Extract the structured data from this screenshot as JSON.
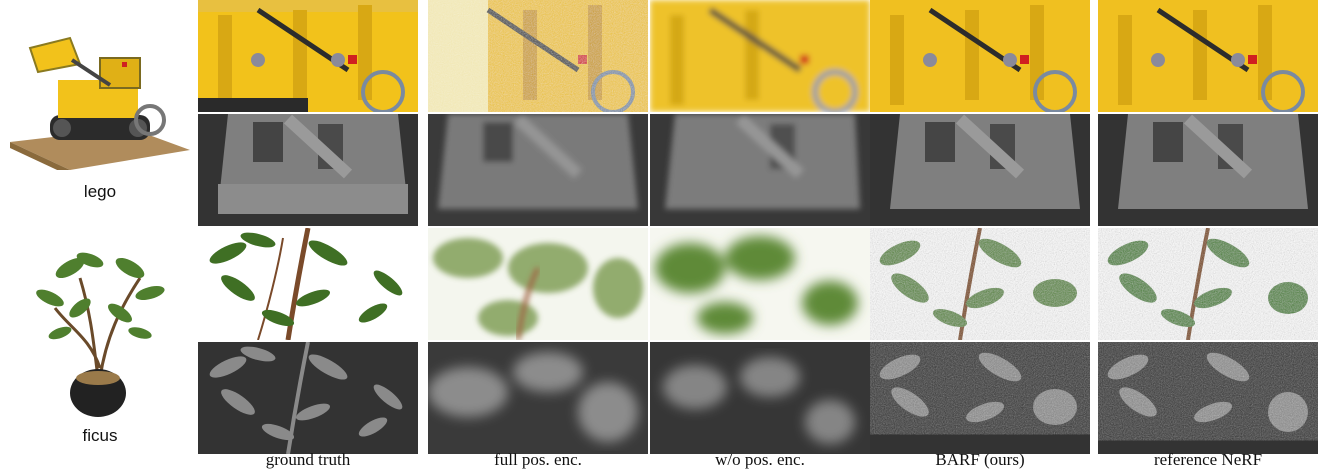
{
  "figure": {
    "scenes": [
      {
        "id": "lego",
        "label": "lego"
      },
      {
        "id": "ficus",
        "label": "ficus"
      }
    ],
    "methods": [
      {
        "id": "ground-truth",
        "caption": "ground truth",
        "quality": "sharp"
      },
      {
        "id": "full-pos-enc",
        "caption": "full pos. enc.",
        "quality": "noisy"
      },
      {
        "id": "wo-pos-enc",
        "caption": "w/o pos. enc.",
        "quality": "blurry"
      },
      {
        "id": "barf",
        "caption": "BARF (ours)",
        "quality": "sharp"
      },
      {
        "id": "reference-nerf",
        "caption": "reference NeRF",
        "quality": "sharp"
      }
    ],
    "colors": {
      "lego_yellow": "#f2c21b",
      "lego_dark": "#3a3a3a",
      "ficus_leaf": "#4f7f2e",
      "depth_bg": "#333333",
      "depth_fg": "#8a8a8a"
    }
  }
}
